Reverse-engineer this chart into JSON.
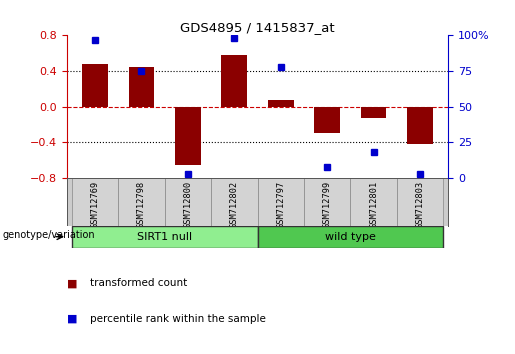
{
  "title": "GDS4895 / 1415837_at",
  "samples": [
    "GSM712769",
    "GSM712798",
    "GSM712800",
    "GSM712802",
    "GSM712797",
    "GSM712799",
    "GSM712801",
    "GSM712803"
  ],
  "transformed_count": [
    0.48,
    0.44,
    -0.65,
    0.58,
    0.08,
    -0.3,
    -0.13,
    -0.42
  ],
  "percentile_rank": [
    97,
    75,
    3,
    98,
    78,
    8,
    18,
    3
  ],
  "groups": [
    {
      "label": "SIRT1 null",
      "start": 0,
      "end": 4,
      "color": "#90ee90"
    },
    {
      "label": "wild type",
      "start": 4,
      "end": 8,
      "color": "#50c850"
    }
  ],
  "bar_color": "#8B0000",
  "dot_color": "#0000CC",
  "ylim_left": [
    -0.8,
    0.8
  ],
  "ylim_right": [
    0,
    100
  ],
  "yticks_left": [
    -0.8,
    -0.4,
    0,
    0.4,
    0.8
  ],
  "yticks_right": [
    0,
    25,
    50,
    75,
    100
  ],
  "left_tick_color": "#CC0000",
  "right_tick_color": "#0000CC",
  "hline_zero_color": "#CC0000",
  "hline_dotted_color": "black",
  "background_color": "#ffffff",
  "legend_red_label": "transformed count",
  "legend_blue_label": "percentile rank within the sample",
  "genotype_label": "genotype/variation",
  "bar_width": 0.55,
  "n_samples": 8
}
